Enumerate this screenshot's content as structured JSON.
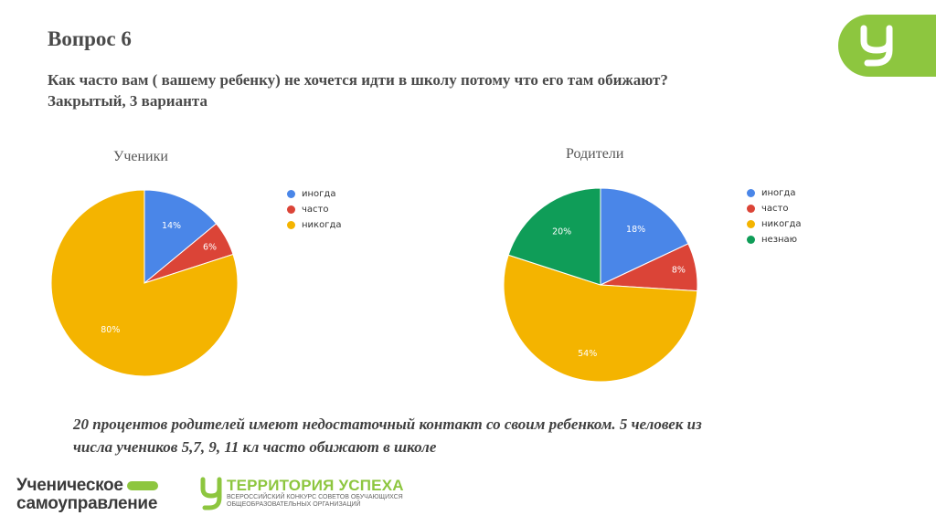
{
  "slide": {
    "heading": "Вопрос 6",
    "question_line1": "Как часто вам ( вашему  ребенку) не хочется идти в школу потому что его там обижают?",
    "question_line2": "Закрытый, 3 варианта",
    "conclusion_line1": "20 процентов родителей имеют недостаточный контакт со своим ребенком. 5 человек из",
    "conclusion_line2": "числа  учеников 5,7, 9, 11  кл  часто обижают в школе"
  },
  "branding": {
    "corner_logo_icon": "u-logo-icon",
    "logo1_line1": "Ученическое",
    "logo1_line2": "самоуправление",
    "logo2_title": "ТЕРРИТОРИЯ УСПЕХА",
    "logo2_subtitle1": "ВСЕРОССИЙСКИЙ КОНКУРС СОВЕТОВ ОБУЧАЮЩИХСЯ",
    "logo2_subtitle2": "ОБЩЕОБРАЗОВАТЕЛЬНЫХ ОРГАНИЗАЦИЙ",
    "accent_color": "#8dc63f"
  },
  "chart_data": [
    {
      "type": "pie",
      "title": "Ученики",
      "legend_position": "right",
      "categories": [
        "иногда",
        "часто",
        "никогда"
      ],
      "values": [
        14,
        6,
        80
      ],
      "labels": [
        "14%",
        "6%",
        "80%"
      ],
      "colors": [
        "#4a86e8",
        "#db4437",
        "#f4b400"
      ]
    },
    {
      "type": "pie",
      "title": "Родители",
      "legend_position": "right",
      "categories": [
        "иногда",
        "часто",
        "никогда",
        "незнаю"
      ],
      "values": [
        18,
        8,
        54,
        20
      ],
      "labels": [
        "18%",
        "8%",
        "54%",
        "20%"
      ],
      "colors": [
        "#4a86e8",
        "#db4437",
        "#f4b400",
        "#0f9d58"
      ]
    }
  ]
}
